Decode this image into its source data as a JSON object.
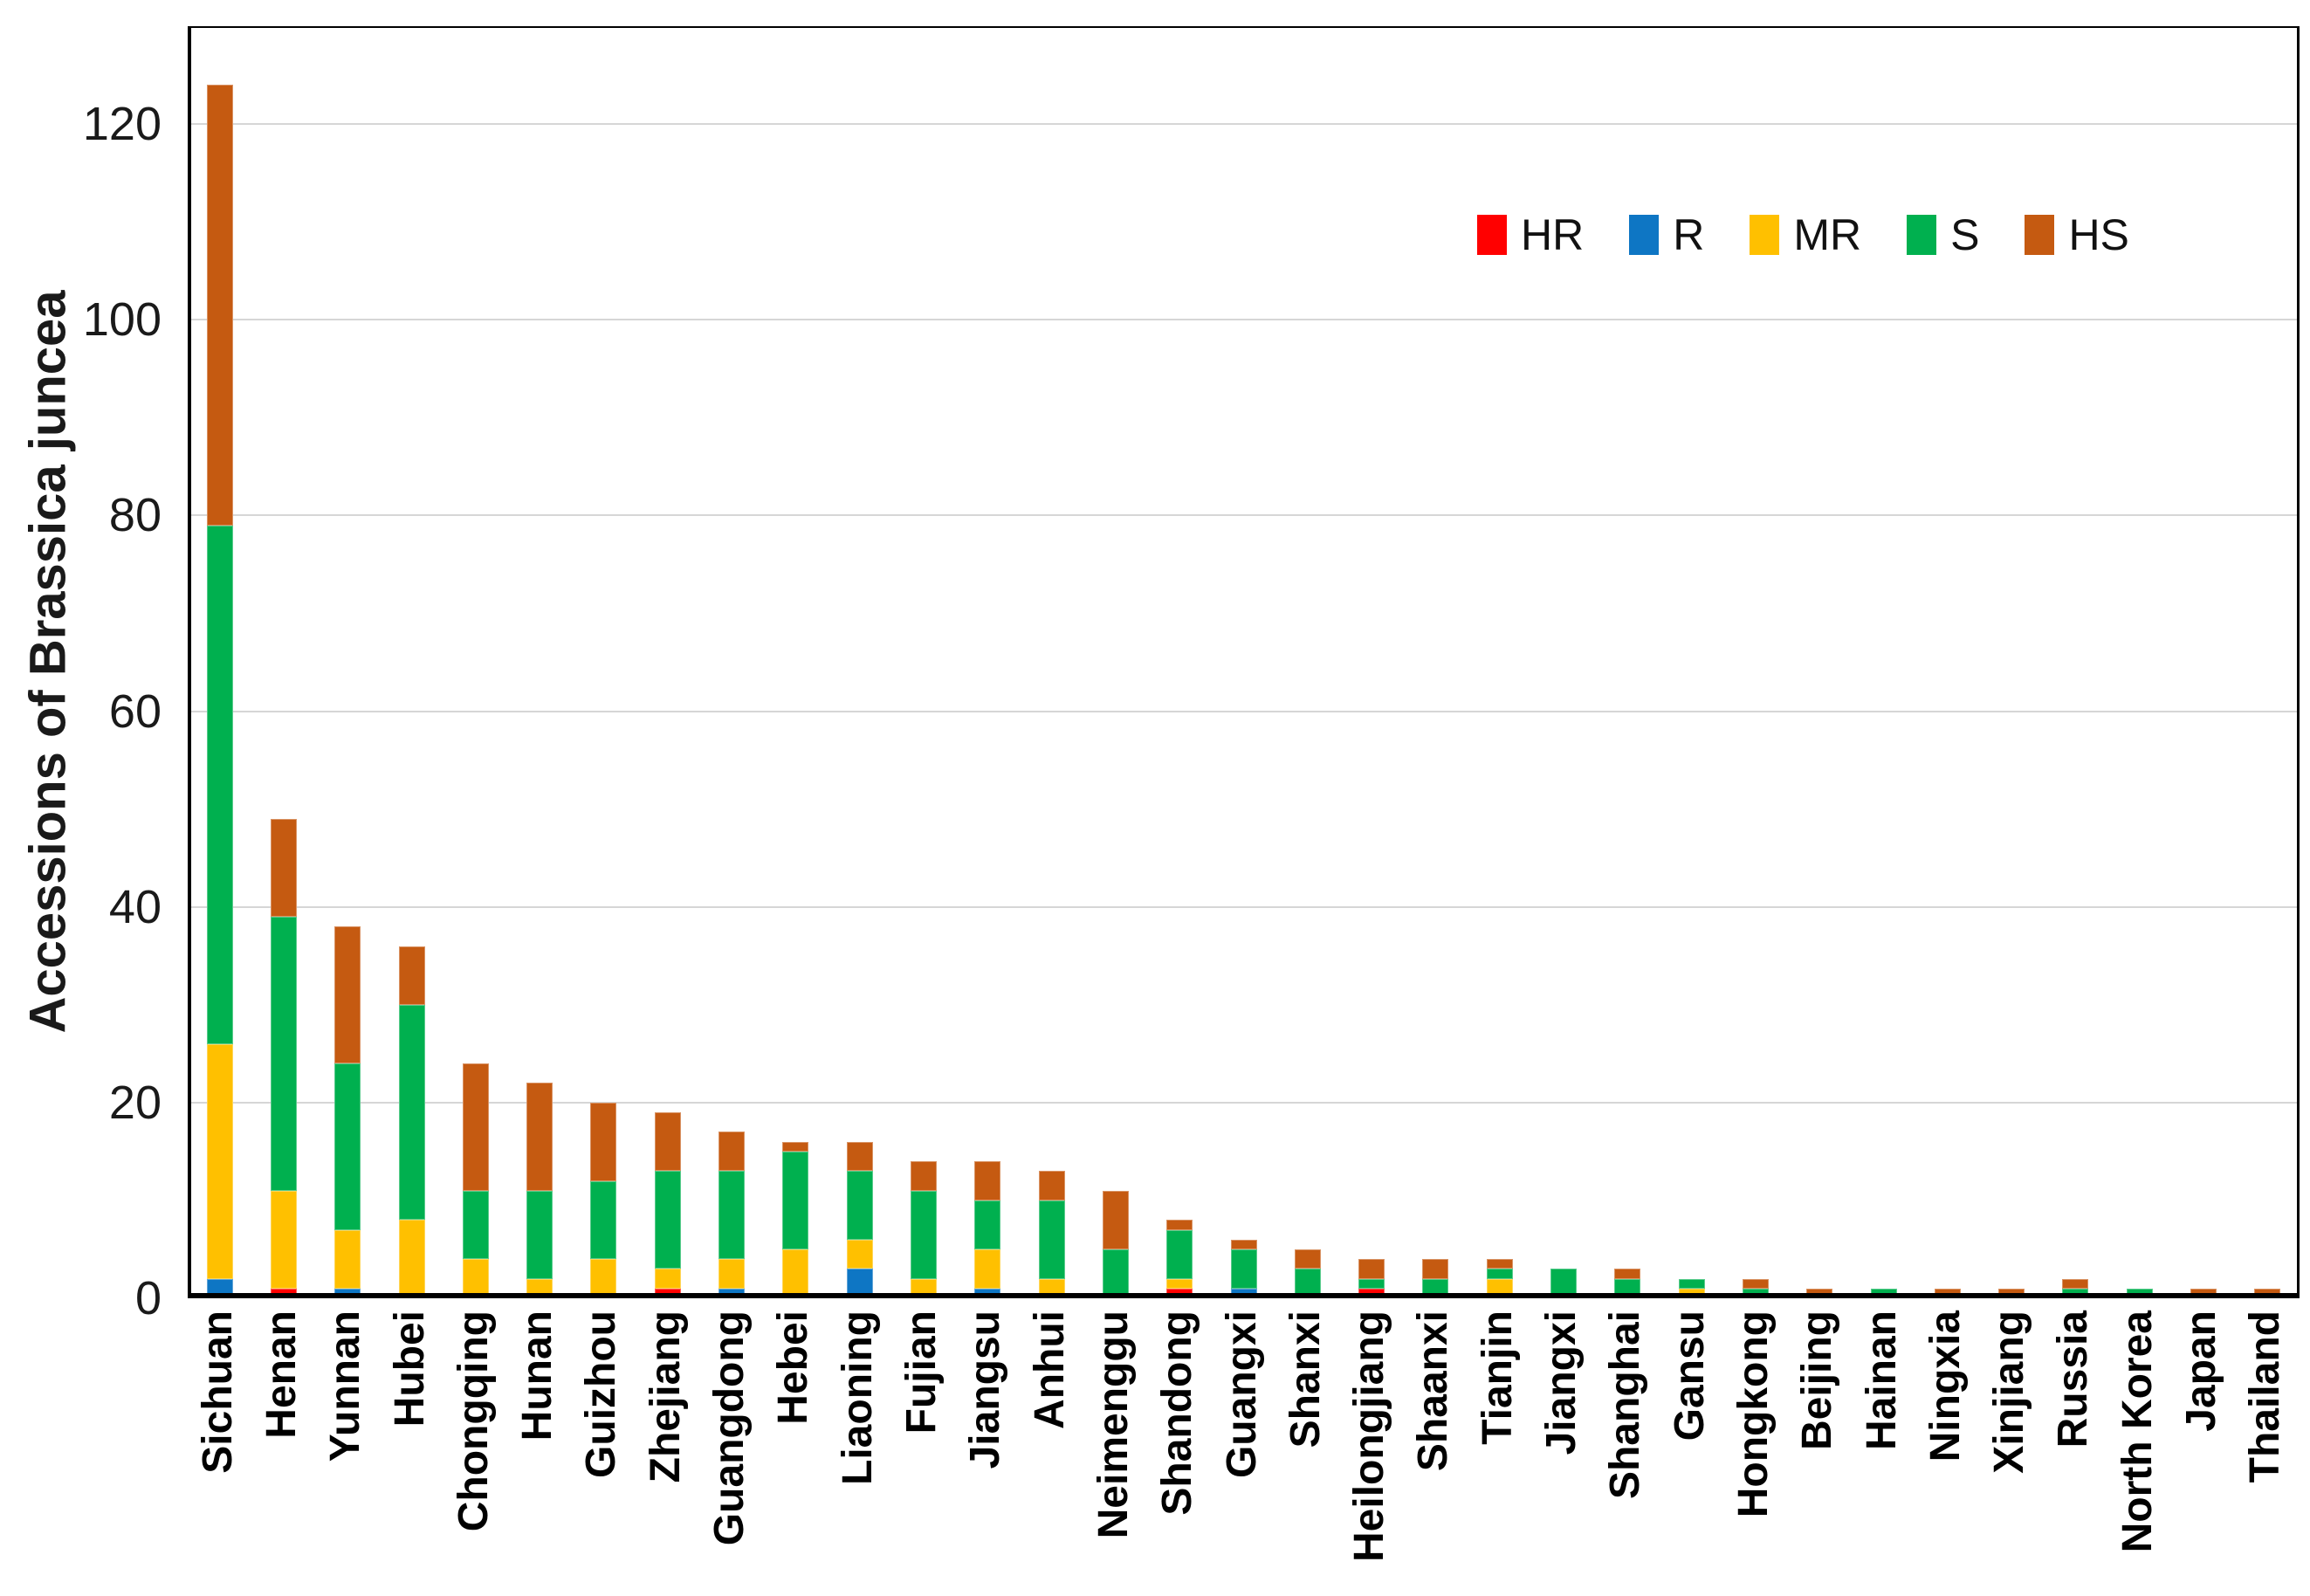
{
  "figure": {
    "y_axis_title": "Accessions of Brassica juncea"
  },
  "legend": {
    "position": "upper-right-inside",
    "items": [
      {
        "label": "HR",
        "color": "#FF0000"
      },
      {
        "label": "R",
        "color": "#0E76C4"
      },
      {
        "label": "MR",
        "color": "#FFC000"
      },
      {
        "label": "S",
        "color": "#00B04F"
      },
      {
        "label": "HS",
        "color": "#C55A11"
      }
    ]
  },
  "chart_data": {
    "type": "bar",
    "stacked": true,
    "title": "",
    "xlabel": "",
    "ylabel": "Accessions of Brassica juncea",
    "ylim": [
      0,
      130
    ],
    "yticks": [
      0,
      20,
      40,
      60,
      80,
      100,
      120
    ],
    "grid": true,
    "legend_position": "upper-right-inside",
    "categories": [
      "Sichuan",
      "Henan",
      "Yunnan",
      "Hubei",
      "Chongqing",
      "Hunan",
      "Guizhou",
      "Zhejiang",
      "Guangdong",
      "Hebei",
      "Liaoning",
      "Fujian",
      "Jiangsu",
      "Anhui",
      "Neimenggu",
      "Shandong",
      "Guangxi",
      "Shanxi",
      "Heilongjiang",
      "Shaanxi",
      "Tianjin",
      "Jiangxi",
      "Shanghai",
      "Gansu",
      "Hongkong",
      "Beijing",
      "Hainan",
      "Ningxia",
      "Xinjiang",
      "Russia",
      "North Korea",
      "Japan",
      "Thailand"
    ],
    "series": [
      {
        "name": "HR",
        "color": "#FF0000",
        "values": [
          0,
          1,
          0,
          0,
          0,
          0,
          0,
          1,
          0,
          0,
          0,
          0,
          0,
          0,
          0,
          1,
          0,
          0,
          1,
          0,
          0,
          0,
          0,
          0,
          0,
          0,
          0,
          0,
          0,
          0,
          0,
          0,
          0
        ]
      },
      {
        "name": "R",
        "color": "#0E76C4",
        "values": [
          2,
          0,
          1,
          0,
          0,
          0,
          0,
          0,
          1,
          0,
          3,
          0,
          1,
          0,
          0,
          0,
          1,
          0,
          0,
          0,
          0,
          0,
          0,
          0,
          0,
          0,
          0,
          0,
          0,
          0,
          0,
          0,
          0
        ]
      },
      {
        "name": "MR",
        "color": "#FFC000",
        "values": [
          24,
          10,
          6,
          8,
          4,
          2,
          4,
          2,
          3,
          5,
          3,
          2,
          4,
          2,
          0,
          1,
          0,
          0,
          0,
          0,
          2,
          0,
          0,
          1,
          0,
          0,
          0,
          0,
          0,
          0,
          0,
          0,
          0
        ]
      },
      {
        "name": "S",
        "color": "#00B04F",
        "values": [
          53,
          28,
          17,
          22,
          7,
          9,
          8,
          10,
          9,
          10,
          7,
          9,
          5,
          8,
          5,
          5,
          4,
          3,
          1,
          2,
          1,
          3,
          2,
          1,
          1,
          0,
          1,
          0,
          0,
          1,
          1,
          0,
          0
        ]
      },
      {
        "name": "HS",
        "color": "#C55A11",
        "values": [
          45,
          10,
          14,
          6,
          13,
          11,
          8,
          6,
          4,
          1,
          3,
          3,
          4,
          3,
          6,
          1,
          1,
          2,
          2,
          2,
          1,
          0,
          1,
          0,
          1,
          1,
          0,
          1,
          1,
          1,
          0,
          1,
          1
        ]
      }
    ],
    "totals": [
      124,
      49,
      38,
      36,
      24,
      22,
      20,
      19,
      17,
      16,
      16,
      14,
      14,
      13,
      11,
      8,
      6,
      5,
      4,
      4,
      4,
      3,
      3,
      2,
      2,
      1,
      1,
      1,
      1,
      2,
      1,
      1,
      1
    ]
  }
}
